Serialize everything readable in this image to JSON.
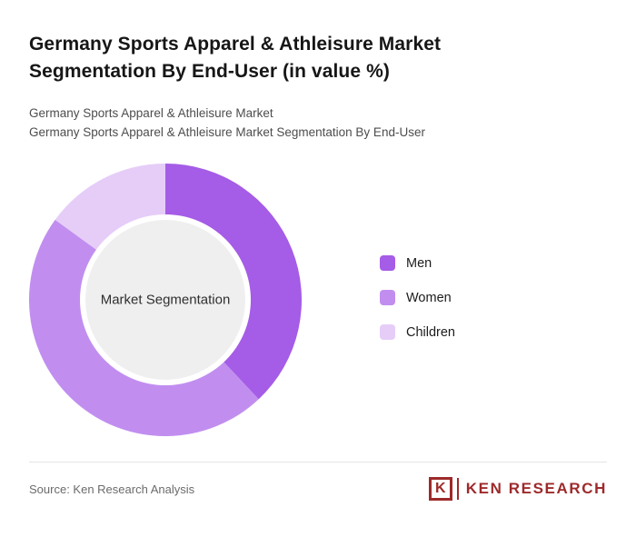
{
  "page": {
    "title": "Germany Sports Apparel & Athleisure Market Segmentation By End-User (in value %)",
    "subtitle_line_1": "Germany Sports Apparel & Athleisure Market",
    "subtitle_line_2": "Germany Sports Apparel & Athleisure Market Segmentation By End-User"
  },
  "chart_data": {
    "type": "pie",
    "variant": "donut",
    "title": "Germany Sports Apparel & Athleisure Market Segmentation By End-User (in value %)",
    "center_label": "Market Segmentation",
    "categories": [
      "Men",
      "Women",
      "Children"
    ],
    "values": [
      38,
      47,
      15
    ],
    "colors": [
      "#a55ce6",
      "#c18ef0",
      "#e5cdf8"
    ],
    "center_circle_color": "#efefef",
    "legend_position": "right",
    "start_angle_deg": -90,
    "data_labels_shown": false
  },
  "footer": {
    "source": "Source: Ken Research Analysis",
    "logo_letter": "K",
    "logo_text": "KEN RESEARCH",
    "logo_color": "#9e2a2b"
  }
}
